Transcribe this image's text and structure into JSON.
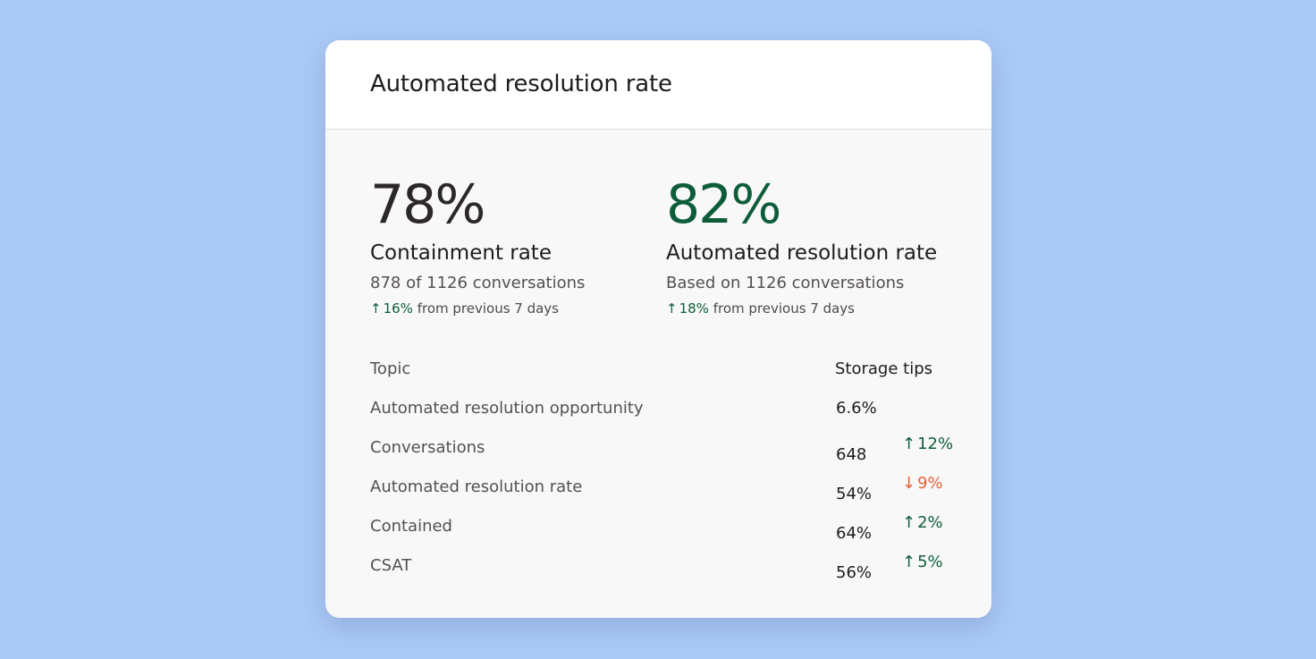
{
  "card": {
    "title": "Automated resolution rate"
  },
  "stats": [
    {
      "value": "78%",
      "label": "Containment rate",
      "subtext": "878 of 1126 conversations",
      "change": "16%",
      "change_direction": "up",
      "change_suffix": "from previous 7 days"
    },
    {
      "value": "82%",
      "label": "Automated resolution rate",
      "subtext": "Based on 1126 conversations",
      "change": "18%",
      "change_direction": "up",
      "change_suffix": "from previous 7 days"
    }
  ],
  "table": {
    "headers": {
      "topic": "Topic",
      "value": "Storage tips"
    },
    "rows": [
      {
        "topic": "Automated resolution opportunity",
        "value": "6.6%",
        "delta": "",
        "direction": ""
      },
      {
        "topic": "Conversations",
        "value": "648",
        "delta": "12%",
        "direction": "up"
      },
      {
        "topic": "Automated resolution rate",
        "value": "54%",
        "delta": "9%",
        "direction": "down"
      },
      {
        "topic": "Contained",
        "value": "64%",
        "delta": "2%",
        "direction": "up"
      },
      {
        "topic": "CSAT",
        "value": "56%",
        "delta": "5%",
        "direction": "up"
      }
    ]
  },
  "colors": {
    "background": "#abc9f6",
    "card": "#f8f8f8",
    "header": "#ffffff",
    "positive": "#0e5d3a",
    "negative": "#e0623a"
  },
  "icons": {
    "up": "arrow-up-icon",
    "down": "arrow-down-icon"
  }
}
